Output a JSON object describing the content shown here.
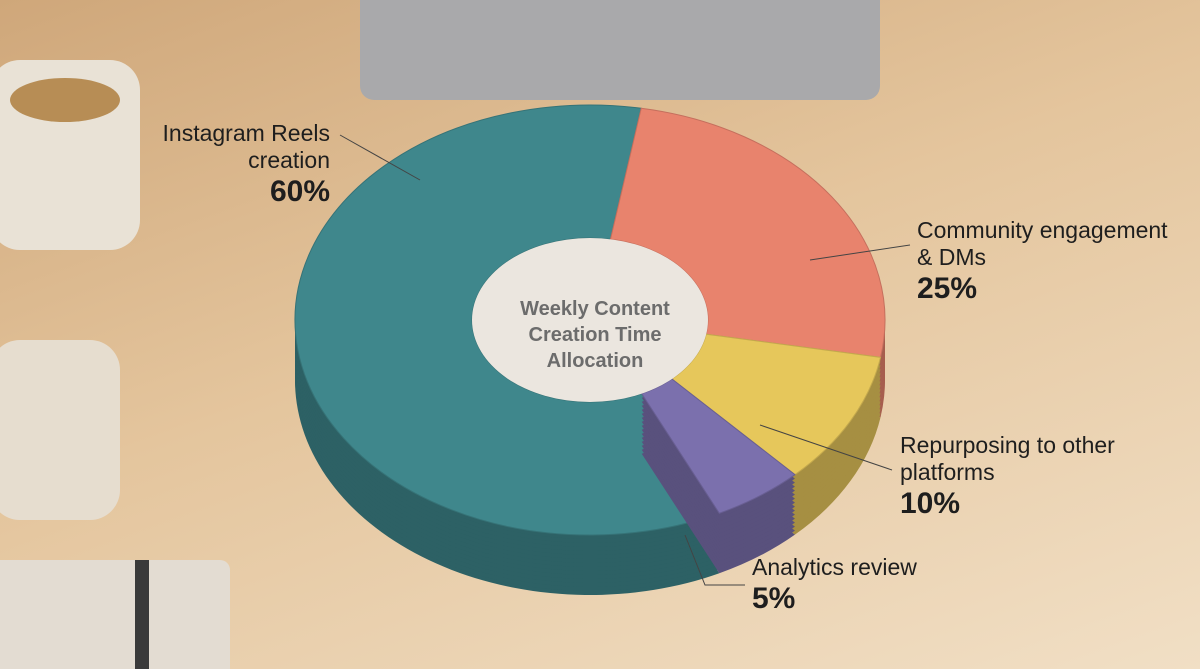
{
  "chart_data": {
    "type": "pie",
    "donut": true,
    "title": "Weekly Content Creation Time Allocation",
    "categories": [
      "Instagram Reels creation",
      "Community engagement & DMs",
      "Repurposing to other platforms",
      "Analytics review"
    ],
    "values": [
      60,
      25,
      10,
      5
    ],
    "value_labels": [
      "60%",
      "25%",
      "10%",
      "5%"
    ],
    "colors": [
      "#3f878c",
      "#e8836d",
      "#e6c75b",
      "#7b70ad"
    ]
  }
}
